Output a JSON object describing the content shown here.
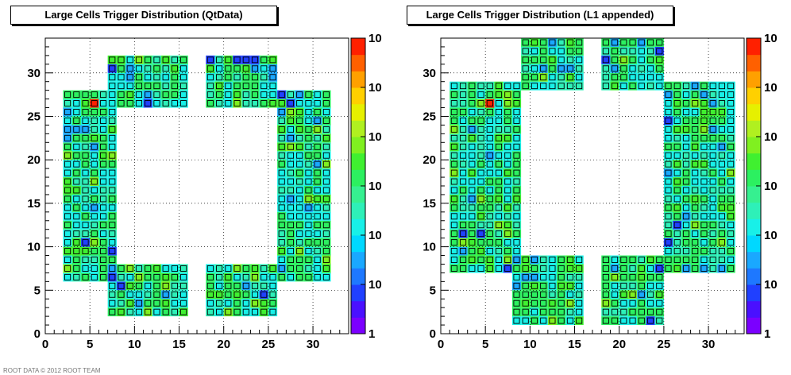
{
  "footer": "ROOT DATA  © 2012 ROOT TEAM",
  "chart_data": [
    {
      "type": "heatmap",
      "title": "Large Cells Trigger Distribution (QtData)",
      "xlim": [
        0,
        34
      ],
      "ylim": [
        0,
        34
      ],
      "xticks": [
        0,
        5,
        10,
        15,
        20,
        25,
        30
      ],
      "yticks": [
        0,
        5,
        10,
        15,
        20,
        25,
        30
      ],
      "zaxis_ticks": [
        "1",
        "10",
        "10",
        "10",
        "10",
        "10",
        "10"
      ],
      "grid": true,
      "palette": [
        "#7b00ff",
        "#4a10ff",
        "#2040ff",
        "#1e78ff",
        "#1aa8ff",
        "#00d8ff",
        "#18f0e8",
        "#2ef0b8",
        "#36f090",
        "#2cf060",
        "#40f030",
        "#80f020",
        "#b0f020",
        "#e6f000",
        "#ffd000",
        "#ffa000",
        "#ff6000",
        "#ff2000"
      ],
      "hot_cells": [
        [
          5.5,
          26.5
        ]
      ],
      "cold_cells": [
        [
          1.5,
          10.5
        ],
        [
          4.5,
          10.5
        ],
        [
          7.5,
          9.5
        ],
        [
          7.5,
          30.5
        ],
        [
          11.5,
          26.5
        ],
        [
          18.5,
          31.5
        ],
        [
          21.5,
          31.5
        ],
        [
          22.5,
          31.5
        ],
        [
          23.5,
          31.5
        ],
        [
          25.5,
          9.5
        ],
        [
          26.5,
          27.5
        ],
        [
          27.5,
          26.5
        ],
        [
          8.5,
          5.5
        ],
        [
          24.5,
          4.5
        ],
        [
          7.5,
          6.5
        ]
      ]
    },
    {
      "type": "heatmap",
      "title": "Large Cells Trigger Distribution (L1 appended)",
      "xlim": [
        0,
        34
      ],
      "ylim": [
        0,
        34
      ],
      "xticks": [
        0,
        5,
        10,
        15,
        20,
        25,
        30
      ],
      "yticks": [
        0,
        5,
        10,
        15,
        20,
        25,
        30
      ],
      "zaxis_ticks": [
        "1",
        "10",
        "10",
        "10",
        "10",
        "10",
        "10"
      ],
      "grid": true,
      "palette": [
        "#7b00ff",
        "#4a10ff",
        "#2040ff",
        "#1e78ff",
        "#1aa8ff",
        "#00d8ff",
        "#18f0e8",
        "#2ef0b8",
        "#36f090",
        "#2cf060",
        "#40f030",
        "#80f020",
        "#b0f020",
        "#e6f000",
        "#ffd000",
        "#ffa000",
        "#ff6000",
        "#ff2000"
      ],
      "hot_cells": [
        [
          5.5,
          26.5
        ]
      ],
      "cold_cells": [
        [
          0.5,
          22.5
        ],
        [
          2.5,
          11.5
        ],
        [
          4.5,
          11.5
        ],
        [
          7.5,
          30.5
        ],
        [
          8.5,
          29.5
        ],
        [
          18.5,
          31.5
        ],
        [
          24.5,
          32.5
        ],
        [
          26.5,
          30.5
        ],
        [
          25.5,
          24.5
        ],
        [
          26.5,
          12.5
        ],
        [
          6.5,
          2.5
        ],
        [
          7.5,
          7.5
        ],
        [
          23.5,
          1.5
        ],
        [
          24.5,
          7.5
        ],
        [
          25.5,
          10.5
        ],
        [
          28.5,
          30.5
        ]
      ]
    }
  ]
}
